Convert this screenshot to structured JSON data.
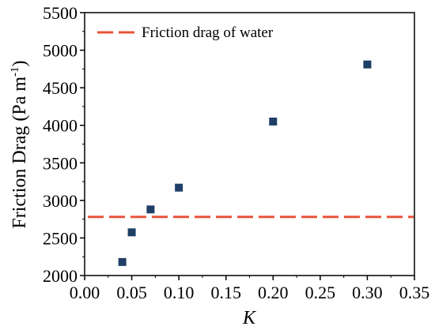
{
  "chart_data": {
    "type": "scatter",
    "xlabel": "K",
    "ylabel": "Friction Drag (Pa m",
    "ylabel_sup": "-1",
    "ylabel_close": ")",
    "xlim": [
      0.0,
      0.35
    ],
    "ylim": [
      2000,
      5500
    ],
    "x_ticks": [
      0.0,
      0.05,
      0.1,
      0.15,
      0.2,
      0.25,
      0.3,
      0.35
    ],
    "x_tick_labels": [
      "0.00",
      "0.05",
      "0.10",
      "0.15",
      "0.20",
      "0.25",
      "0.30",
      "0.35"
    ],
    "y_ticks": [
      2000,
      2500,
      3000,
      3500,
      4000,
      4500,
      5000,
      5500
    ],
    "y_tick_labels": [
      "2000",
      "2500",
      "3000",
      "3500",
      "4000",
      "4500",
      "5000",
      "5500"
    ],
    "grid": false,
    "legend_position": "top-left",
    "series": [
      {
        "type": "scatter",
        "marker": "square",
        "color": "#1f3f66",
        "points": [
          {
            "x": 0.04,
            "y": 2180
          },
          {
            "x": 0.05,
            "y": 2575
          },
          {
            "x": 0.07,
            "y": 2880
          },
          {
            "x": 0.1,
            "y": 3170
          },
          {
            "x": 0.2,
            "y": 4050
          },
          {
            "x": 0.3,
            "y": 4810
          }
        ]
      },
      {
        "name": "Friction drag of water",
        "type": "hline",
        "style": "dashed",
        "color": "#e8533a",
        "y": 2780
      }
    ]
  }
}
